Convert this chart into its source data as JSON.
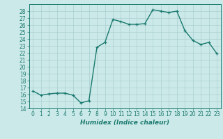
{
  "x": [
    0,
    1,
    2,
    3,
    4,
    5,
    6,
    7,
    8,
    9,
    10,
    11,
    12,
    13,
    14,
    15,
    16,
    17,
    18,
    19,
    20,
    21,
    22,
    23
  ],
  "y": [
    16.5,
    15.9,
    16.1,
    16.2,
    16.2,
    15.9,
    14.8,
    15.1,
    22.8,
    23.5,
    26.8,
    26.5,
    26.1,
    26.1,
    26.2,
    28.2,
    28.0,
    27.8,
    28.0,
    25.2,
    23.8,
    23.2,
    23.5,
    21.9
  ],
  "line_color": "#1a7a6e",
  "marker": "+",
  "bg_color": "#cce9e9",
  "grid_color": "#aacfcf",
  "xlabel": "Humidex (Indice chaleur)",
  "xlim": [
    -0.5,
    23.5
  ],
  "ylim": [
    14,
    29
  ],
  "yticks": [
    14,
    15,
    16,
    17,
    18,
    19,
    20,
    21,
    22,
    23,
    24,
    25,
    26,
    27,
    28
  ],
  "xticks": [
    0,
    1,
    2,
    3,
    4,
    5,
    6,
    7,
    8,
    9,
    10,
    11,
    12,
    13,
    14,
    15,
    16,
    17,
    18,
    19,
    20,
    21,
    22,
    23
  ],
  "tick_fontsize": 5.5,
  "label_fontsize": 6.5,
  "line_width": 1.0,
  "marker_size": 3.5
}
